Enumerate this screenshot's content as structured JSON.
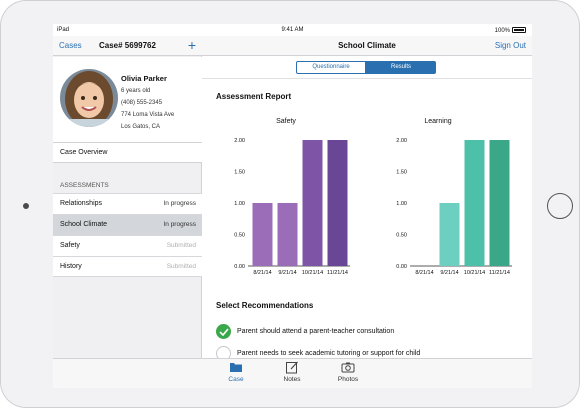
{
  "status_bar": {
    "carrier": "iPad",
    "time": "9:41 AM",
    "battery": "100%"
  },
  "left_nav": {
    "back_label": "Cases",
    "title": "Case# 5699762",
    "add_icon": "plus-icon"
  },
  "profile": {
    "name": "Olivia Parker",
    "age": "6 years old",
    "phone": "(408) 555-2345",
    "address": "774 Loma Vista Ave",
    "city": "Los Gatos, CA"
  },
  "case_overview_label": "Case Overview",
  "assessments": {
    "header": "ASSESSMENTS",
    "items": [
      {
        "name": "Relationships",
        "status": "In progress",
        "selected": false,
        "dim": false
      },
      {
        "name": "School Climate",
        "status": "In progress",
        "selected": true,
        "dim": false
      },
      {
        "name": "Safety",
        "status": "Submitted",
        "selected": false,
        "dim": true
      },
      {
        "name": "History",
        "status": "Submitted",
        "selected": false,
        "dim": true
      }
    ]
  },
  "right_nav": {
    "title": "School Climate",
    "sign_out_label": "Sign Out"
  },
  "segments": {
    "questionnaire": "Questionnaire",
    "results": "Results",
    "selected": "Results"
  },
  "report_title": "Assessment Report",
  "chart_data": [
    {
      "type": "bar",
      "title": "Safety",
      "categories": [
        "8/21/14",
        "9/21/14",
        "10/21/14",
        "11/21/14"
      ],
      "values": [
        1.0,
        1.0,
        2.0,
        2.0
      ],
      "ylim": [
        0,
        2
      ],
      "yticks": [
        "0.00",
        "0.50",
        "1.00",
        "1.50",
        "2.00"
      ],
      "colors": [
        "#9b6cb8",
        "#9b6cb8",
        "#7e55a6",
        "#6a4796"
      ]
    },
    {
      "type": "bar",
      "title": "Learning",
      "categories": [
        "8/21/14",
        "9/21/14",
        "10/21/14",
        "11/21/14"
      ],
      "values": [
        0,
        1.0,
        2.0,
        2.0
      ],
      "ylim": [
        0,
        2
      ],
      "yticks": [
        "0.00",
        "0.50",
        "1.00",
        "1.50",
        "2.00"
      ],
      "colors": [
        "#6ccfc0",
        "#6ccfc0",
        "#4cc0a8",
        "#3aa888"
      ]
    }
  ],
  "recommendations": {
    "title": "Select Recommendations",
    "items": [
      {
        "text": "Parent should attend a parent-teacher consultation",
        "checked": true
      },
      {
        "text": "Parent needs to seek academic tutoring or support for child",
        "checked": false
      }
    ]
  },
  "tabs": [
    {
      "label": "Case",
      "icon": "folder-icon",
      "active": true
    },
    {
      "label": "Notes",
      "icon": "notes-icon",
      "active": false
    },
    {
      "label": "Photos",
      "icon": "camera-icon",
      "active": false
    }
  ]
}
